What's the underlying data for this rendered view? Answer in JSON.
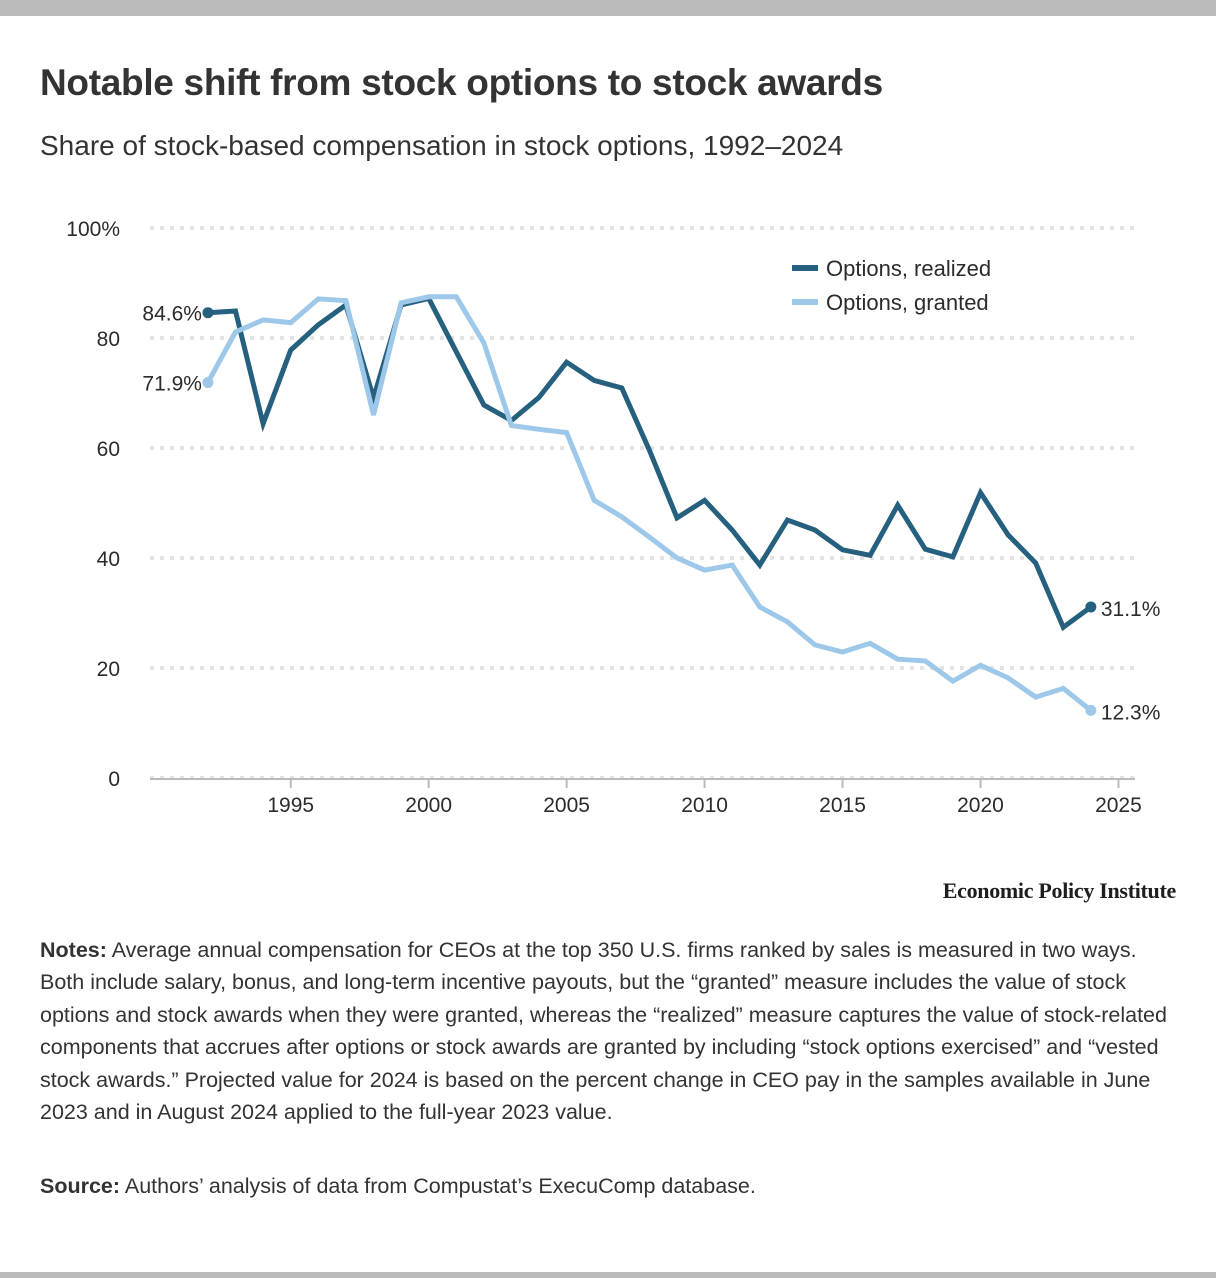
{
  "title": "Notable shift from stock options to stock awards",
  "subtitle": "Share of stock-based compensation in stock options, 1992–2024",
  "attribution": "Economic Policy Institute",
  "notes_label": "Notes:",
  "notes_text": " Average annual compensation for CEOs at the top 350 U.S. firms ranked by sales is measured in two ways. Both include salary, bonus, and long-term incentive payouts, but the “granted” measure includes the value of stock options and stock awards when they were granted, whereas the “realized” measure captures the value of stock-related components that accrues after options or stock awards are granted by including “stock options exercised” and “vested stock awards.” Projected value for 2024 is based on the percent change in CEO pay in the samples available in June 2023 and in August 2024 applied to the full-year 2023 value.",
  "source_label": "Source:",
  "source_text": " Authors’ analysis of data from Compustat’s ExecuComp database.",
  "colors": {
    "realized": "#26607f",
    "granted": "#9dc8ea",
    "grid": "#e3e3e3",
    "axis": "#bbbbbb",
    "text": "#2b2b2b"
  },
  "chart_data": {
    "type": "line",
    "title": "Notable shift from stock options to stock awards",
    "subtitle": "Share of stock-based compensation in stock options, 1992–2024",
    "xlabel": "",
    "ylabel": "",
    "x": [
      1992,
      1993,
      1994,
      1995,
      1996,
      1997,
      1998,
      1999,
      2000,
      2001,
      2002,
      2003,
      2004,
      2005,
      2006,
      2007,
      2008,
      2009,
      2010,
      2011,
      2012,
      2013,
      2014,
      2015,
      2016,
      2017,
      2018,
      2019,
      2020,
      2021,
      2022,
      2023,
      2024
    ],
    "series": [
      {
        "name": "Options, realized",
        "values": [
          84.6,
          84.9,
          64.4,
          77.8,
          82.4,
          86.0,
          69.1,
          86.0,
          87.2,
          77.5,
          67.8,
          65.0,
          69.2,
          75.6,
          72.3,
          70.9,
          59.6,
          47.3,
          50.5,
          45.1,
          38.7,
          46.9,
          45.1,
          41.5,
          40.5,
          49.6,
          41.6,
          40.2,
          51.9,
          44.2,
          39.1,
          27.4,
          31.1
        ],
        "start_label": "84.6%",
        "end_label": "31.1%"
      },
      {
        "name": "Options, granted",
        "values": [
          71.9,
          81.1,
          83.3,
          82.8,
          87.1,
          86.8,
          66.0,
          86.4,
          87.5,
          87.5,
          79.1,
          64.1,
          63.4,
          62.8,
          50.5,
          47.5,
          43.8,
          40.0,
          37.8,
          38.7,
          31.1,
          28.4,
          24.2,
          22.9,
          24.5,
          21.6,
          21.3,
          17.6,
          20.5,
          18.2,
          14.7,
          16.3,
          12.3
        ],
        "start_label": "71.9%",
        "end_label": "12.3%"
      }
    ],
    "xlim": [
      1989.9,
      2025.6
    ],
    "ylim": [
      0,
      100
    ],
    "xticks": [
      1995,
      2000,
      2005,
      2010,
      2015,
      2020,
      2025
    ],
    "xtick_labels": [
      "1995",
      "2000",
      "2005",
      "2010",
      "2015",
      "2020",
      "2025"
    ],
    "yticks": [
      0,
      20,
      40,
      60,
      80,
      100
    ],
    "ytick_labels": [
      "0",
      "20",
      "40",
      "60",
      "80",
      "100%"
    ],
    "grid": true,
    "legend_position": "top-right"
  }
}
